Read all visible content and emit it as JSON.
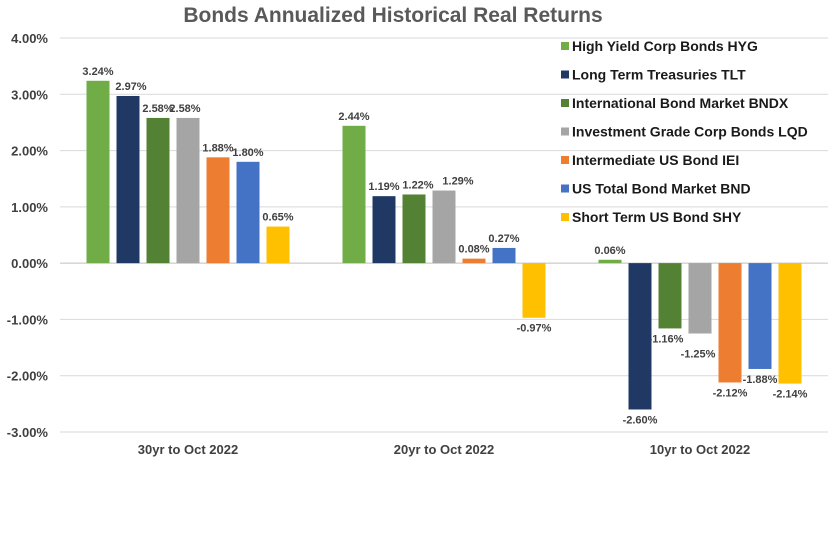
{
  "chart_data": {
    "type": "bar",
    "title": "Bonds Annualized Historical Real Returns",
    "xlabel": "",
    "ylabel": "",
    "ylim": [
      -3,
      4
    ],
    "y_ticks": [
      4,
      3,
      2,
      1,
      0,
      -1,
      -2,
      -3
    ],
    "y_tick_labels": [
      "4.00%",
      "3.00%",
      "2.00%",
      "1.00%",
      "0.00%",
      "-1.00%",
      "-2.00%",
      "-3.00%"
    ],
    "grid": true,
    "legend_position": "top-right",
    "categories": [
      "30yr to Oct 2022",
      "20yr to Oct 2022",
      "10yr to Oct 2022"
    ],
    "series": [
      {
        "name": "High Yield Corp Bonds HYG",
        "color": "#70ad47",
        "values": [
          3.24,
          2.44,
          0.06
        ],
        "labels": [
          "3.24%",
          "2.44%",
          "0.06%"
        ]
      },
      {
        "name": "Long Term Treasuries TLT",
        "color": "#203864",
        "values": [
          2.97,
          1.19,
          -2.6
        ],
        "labels": [
          "2.97%",
          "1.19%",
          "-2.60%"
        ]
      },
      {
        "name": "International Bond Market BNDX",
        "color": "#548235",
        "values": [
          2.58,
          1.22,
          -1.16
        ],
        "labels": [
          "2.58%",
          "1.22%",
          "-1.16%"
        ]
      },
      {
        "name": "Investment Grade Corp Bonds LQD",
        "color": "#a5a5a5",
        "values": [
          2.58,
          1.29,
          -1.25
        ],
        "labels": [
          "2.58%",
          "1.29%",
          "-1.25%"
        ]
      },
      {
        "name": "Intermediate US Bond IEI",
        "color": "#ed7d31",
        "values": [
          1.88,
          0.08,
          -2.12
        ],
        "labels": [
          "1.88%",
          "0.08%",
          "-2.12%"
        ]
      },
      {
        "name": "US Total Bond Market BND",
        "color": "#4472c4",
        "values": [
          1.8,
          0.27,
          -1.88
        ],
        "labels": [
          "1.80%",
          "0.27%",
          "-1.88%"
        ]
      },
      {
        "name": "Short Term US Bond SHY",
        "color": "#ffc000",
        "values": [
          0.65,
          -0.97,
          -2.14
        ],
        "labels": [
          "0.65%",
          "-0.97%",
          "-2.14%"
        ]
      }
    ]
  }
}
